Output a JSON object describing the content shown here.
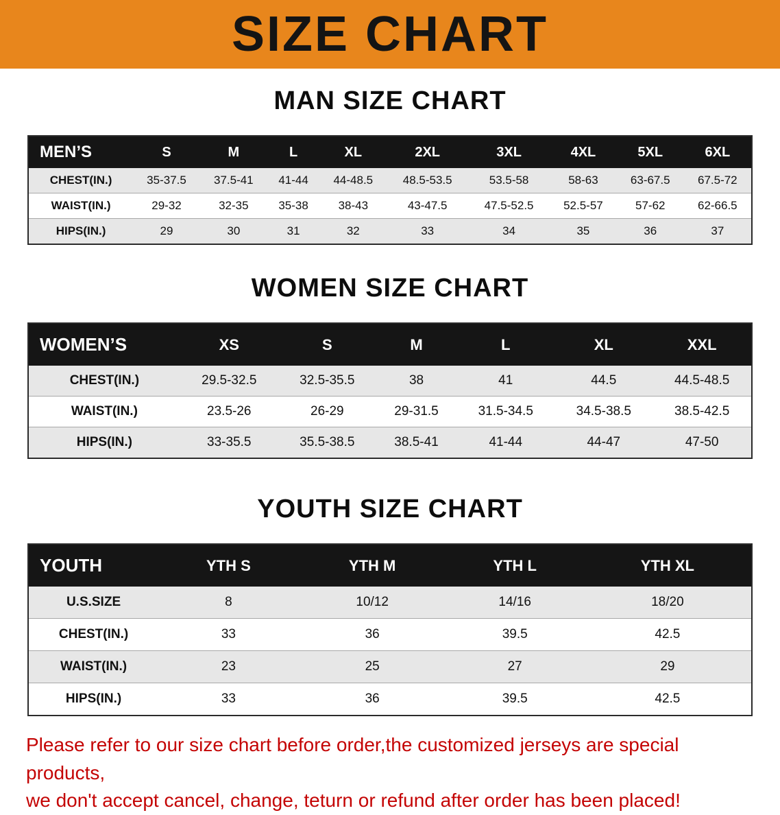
{
  "colors": {
    "banner_orange": "#E8861C",
    "header_black": "#151515",
    "stripe_gray": "#e7e7e7",
    "disclaimer_red": "#C40404"
  },
  "banner": {
    "title": "SIZE CHART"
  },
  "sections": [
    {
      "heading": "MAN SIZE CHART",
      "table": {
        "header": [
          "MEN’S",
          "S",
          "M",
          "L",
          "XL",
          "2XL",
          "3XL",
          "4XL",
          "5XL",
          "6XL"
        ],
        "rows": [
          [
            "CHEST(IN.)",
            "35-37.5",
            "37.5-41",
            "41-44",
            "44-48.5",
            "48.5-53.5",
            "53.5-58",
            "58-63",
            "63-67.5",
            "67.5-72"
          ],
          [
            "WAIST(IN.)",
            "29-32",
            "32-35",
            "35-38",
            "38-43",
            "43-47.5",
            "47.5-52.5",
            "52.5-57",
            "57-62",
            "62-66.5"
          ],
          [
            "HIPS(IN.)",
            "29",
            "30",
            "31",
            "32",
            "33",
            "34",
            "35",
            "36",
            "37"
          ]
        ]
      }
    },
    {
      "heading": "WOMEN SIZE CHART",
      "table": {
        "header": [
          "WOMEN’S",
          "XS",
          "S",
          "M",
          "L",
          "XL",
          "XXL"
        ],
        "rows": [
          [
            "CHEST(IN.)",
            "29.5-32.5",
            "32.5-35.5",
            "38",
            "41",
            "44.5",
            "44.5-48.5"
          ],
          [
            "WAIST(IN.)",
            "23.5-26",
            "26-29",
            "29-31.5",
            "31.5-34.5",
            "34.5-38.5",
            "38.5-42.5"
          ],
          [
            "HIPS(IN.)",
            "33-35.5",
            "35.5-38.5",
            "38.5-41",
            "41-44",
            "44-47",
            "47-50"
          ]
        ]
      }
    },
    {
      "heading": "YOUTH SIZE CHART",
      "table": {
        "header": [
          "YOUTH",
          "YTH S",
          "YTH M",
          "YTH L",
          "YTH XL"
        ],
        "rows": [
          [
            "U.S.SIZE",
            "8",
            "10/12",
            "14/16",
            "18/20"
          ],
          [
            "CHEST(IN.)",
            "33",
            "36",
            "39.5",
            "42.5"
          ],
          [
            "WAIST(IN.)",
            "23",
            "25",
            "27",
            "29"
          ],
          [
            "HIPS(IN.)",
            "33",
            "36",
            "39.5",
            "42.5"
          ]
        ]
      }
    }
  ],
  "disclaimer": {
    "line1": "Please refer to our size chart before order,the customized jerseys are special products,",
    "line2": "we don't accept cancel, change, teturn or refund after order has been placed!"
  }
}
